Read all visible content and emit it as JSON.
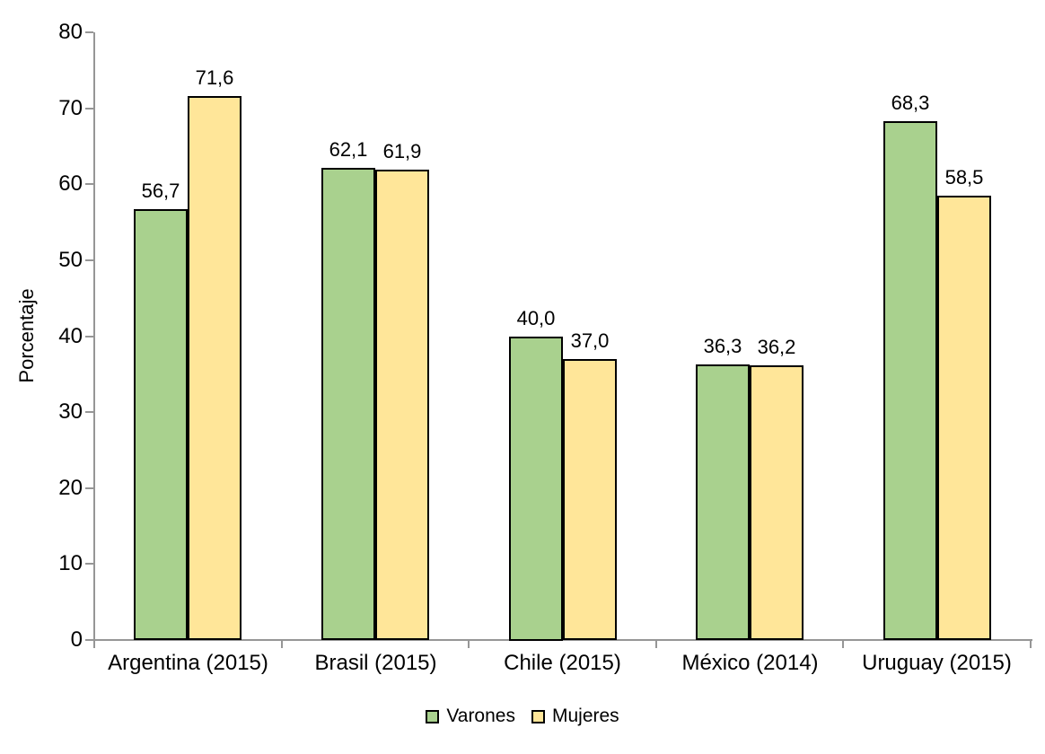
{
  "chart_data": {
    "type": "bar",
    "title": "",
    "ylabel": "Porcentaje",
    "xlabel": "",
    "ylim": [
      0,
      80
    ],
    "yticks": [
      0,
      10,
      20,
      30,
      40,
      50,
      60,
      70,
      80
    ],
    "grid": false,
    "legend_position": "bottom",
    "decimal_separator": ",",
    "categories": [
      "Argentina (2015)",
      "Brasil (2015)",
      "Chile (2015)",
      "México (2014)",
      "Uruguay (2015)"
    ],
    "series": [
      {
        "name": "Varones",
        "color": "#A9D18E",
        "values": [
          56.7,
          62.1,
          40.0,
          36.3,
          68.3
        ],
        "labels": [
          "56,7",
          "62,1",
          "40,0",
          "36,3",
          "68,3"
        ]
      },
      {
        "name": "Mujeres",
        "color": "#FFE699",
        "values": [
          71.6,
          61.9,
          37.0,
          36.2,
          58.5
        ],
        "labels": [
          "71,6",
          "61,9",
          "37,0",
          "36,2",
          "58,5"
        ]
      }
    ],
    "bar_border_color": "#000000",
    "axis_color": "#969696",
    "label_color": "#000000"
  }
}
